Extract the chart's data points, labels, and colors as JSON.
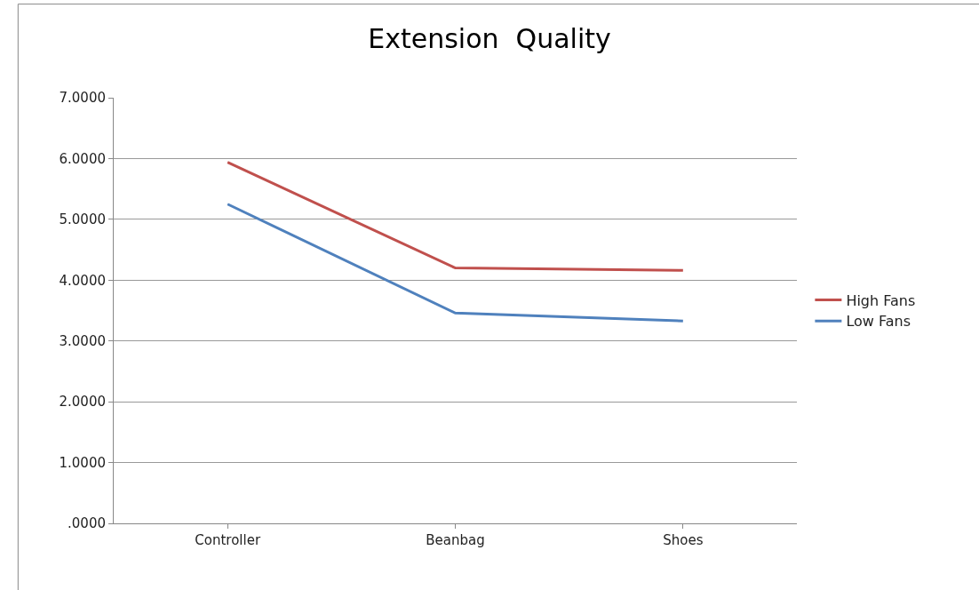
{
  "chart_data": {
    "type": "line",
    "title": "Extension  Quality",
    "categories": [
      "Controller",
      "Beanbag",
      "Shoes"
    ],
    "series": [
      {
        "name": "High Fans",
        "color": "#c0504d",
        "values": [
          5.94,
          4.2,
          4.16
        ]
      },
      {
        "name": "Low Fans",
        "color": "#4f81bd",
        "values": [
          5.25,
          3.46,
          3.33
        ]
      }
    ],
    "ylim": [
      0,
      7
    ],
    "yticks": [
      {
        "value": 0,
        "label": ".0000"
      },
      {
        "value": 1,
        "label": "1.0000"
      },
      {
        "value": 2,
        "label": "2.0000"
      },
      {
        "value": 3,
        "label": "3.0000"
      },
      {
        "value": 4,
        "label": "4.0000"
      },
      {
        "value": 5,
        "label": "5.0000"
      },
      {
        "value": 6,
        "label": "6.0000"
      },
      {
        "value": 7,
        "label": "7.0000"
      }
    ],
    "grid": "y",
    "legend": "right",
    "marker": "none",
    "line_style": "solid"
  }
}
